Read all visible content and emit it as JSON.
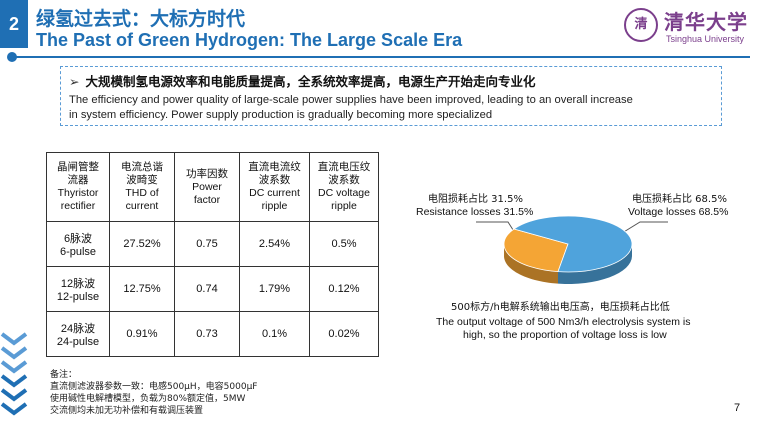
{
  "header": {
    "section_number": "2",
    "title_cn": "绿氢过去式：大标方时代",
    "title_en": "The Past of Green Hydrogen: The Large Scale Era"
  },
  "logo": {
    "seal_text": "清",
    "name_cn": "清华大学",
    "name_en": "Tsinghua University"
  },
  "summary": {
    "heading_cn": "大规模制氢电源效率和电能质量提高，全系统效率提高，电源生产开始走向专业化",
    "line1_en": "The efficiency and power quality of large-scale power supplies have been improved, leading to an overall increase",
    "line2_en": "in system efficiency. Power supply production is gradually becoming more specialized"
  },
  "table": {
    "headers": [
      {
        "cn1": "晶闸管整",
        "cn2": "流器",
        "en1": "Thyristor",
        "en2": "rectifier"
      },
      {
        "cn1": "电流总谐",
        "cn2": "波畸变",
        "en1": "THD of",
        "en2": "current"
      },
      {
        "cn1": "功率因数",
        "cn2": "",
        "en1": "Power",
        "en2": "factor"
      },
      {
        "cn1": "直流电流纹",
        "cn2": "波系数",
        "en1": "DC current",
        "en2": "ripple"
      },
      {
        "cn1": "直流电压纹",
        "cn2": "波系数",
        "en1": "DC voltage",
        "en2": "ripple"
      }
    ],
    "rows": [
      {
        "label_cn": "6脉波",
        "label_en": "6-pulse",
        "thd": "27.52%",
        "pf": "0.75",
        "dc_current": "2.54%",
        "dc_voltage": "0.5%"
      },
      {
        "label_cn": "12脉波",
        "label_en": "12-pulse",
        "thd": "12.75%",
        "pf": "0.74",
        "dc_current": "1.79%",
        "dc_voltage": "0.12%"
      },
      {
        "label_cn": "24脉波",
        "label_en": "24-pulse",
        "thd": "0.91%",
        "pf": "0.73",
        "dc_current": "0.1%",
        "dc_voltage": "0.02%"
      }
    ]
  },
  "chart_data": {
    "type": "pie",
    "series": [
      {
        "name_cn": "电阻损耗占比 31.5%",
        "name_en": "Resistance losses 31.5%",
        "value": 31.5,
        "color": "#f4a535"
      },
      {
        "name_cn": "电压损耗占比 68.5%",
        "name_en": "Voltage losses 68.5%",
        "value": 68.5,
        "color": "#4fa3dc"
      }
    ],
    "caption_cn": "500标方/h电解系统输出电压高，电压损耗占比低",
    "caption_en_1": "The output voltage of 500 Nm3/h electrolysis system is",
    "caption_en_2": "high, so the proportion of voltage loss is low"
  },
  "notes": {
    "title": "备注：",
    "line1": "直流侧滤波器参数一致：电感500μH，电容5000μF",
    "line2": "使用碱性电解槽模型，负载为80%额定值，5MW",
    "line3": "交流侧均未加无功补偿和有载调压装置"
  },
  "page_number": "7",
  "colors": {
    "brand": "#1f6fb4",
    "logo": "#7b3f8c",
    "accent_light": "#5a9bd5"
  }
}
